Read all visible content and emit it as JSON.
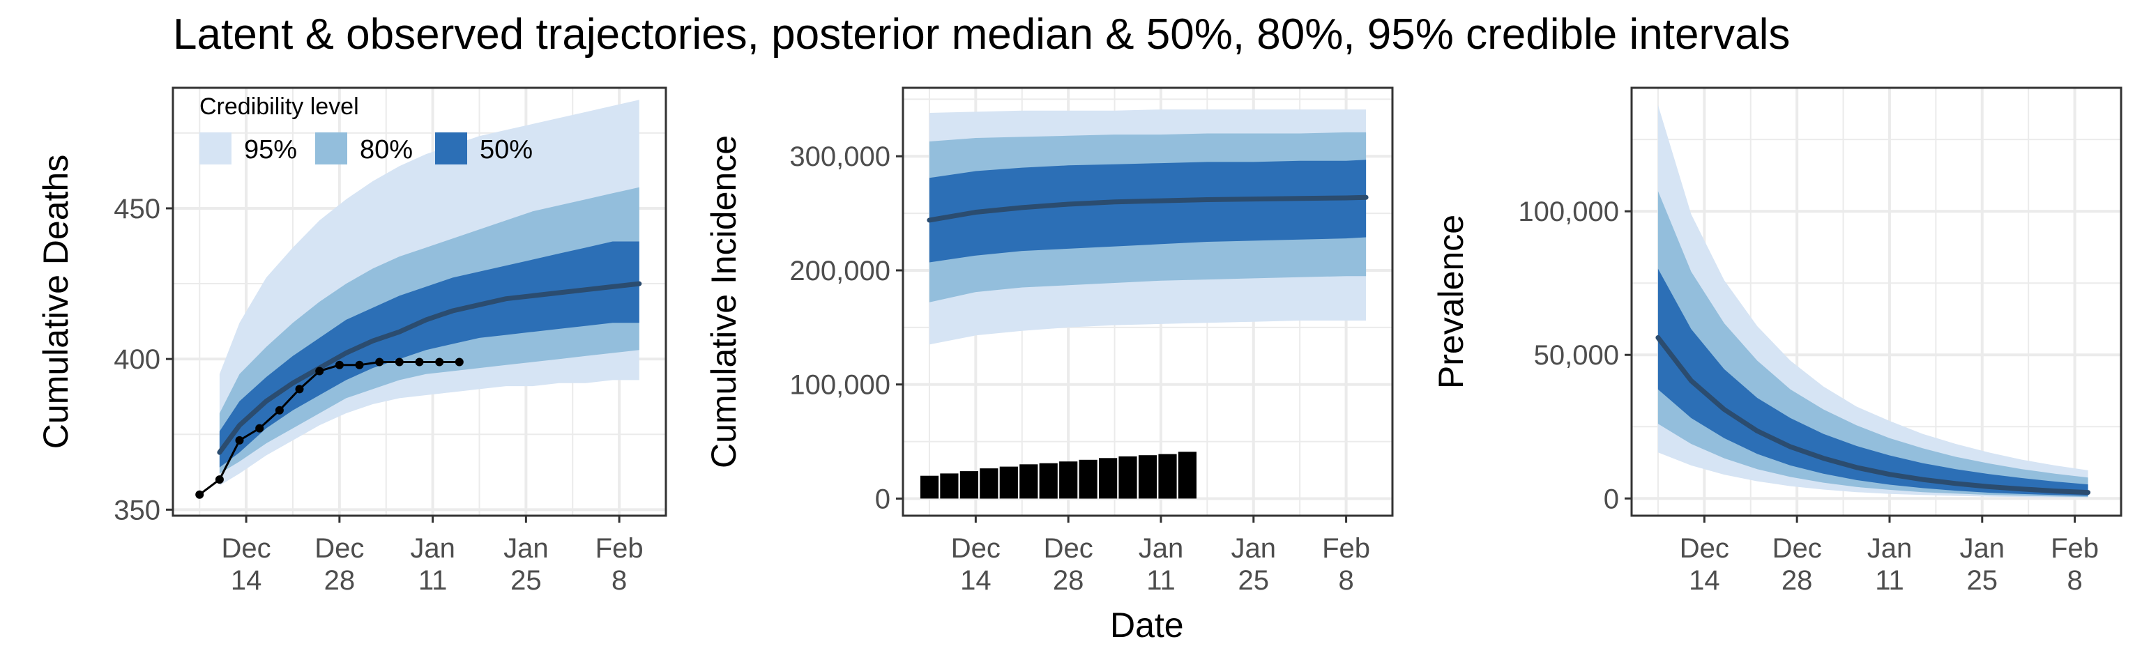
{
  "title": "Latent & observed trajectories, posterior median & 50%, 80%, 95% credible intervals",
  "xlabel": "Date",
  "legend": {
    "title": "Credibility level",
    "items": [
      {
        "label": "95%",
        "color": "#d6e4f4"
      },
      {
        "label": "80%",
        "color": "#93bedc"
      },
      {
        "label": "50%",
        "color": "#2c6fb6"
      }
    ]
  },
  "colors": {
    "median": "#2b4c6f",
    "observed": "#000000",
    "grid": "#ebebeb"
  },
  "chart_data": [
    {
      "type": "area",
      "ylabel": "Cumulative Deaths",
      "xlim": [
        "2020-12-03",
        "2021-02-15"
      ],
      "ylim": [
        348,
        490
      ],
      "x_ticks": [
        {
          "date": "2020-12-14",
          "label": [
            "Dec",
            "14"
          ]
        },
        {
          "date": "2020-12-28",
          "label": [
            "Dec",
            "28"
          ]
        },
        {
          "date": "2021-01-11",
          "label": [
            "Jan",
            "11"
          ]
        },
        {
          "date": "2021-01-25",
          "label": [
            "Jan",
            "25"
          ]
        },
        {
          "date": "2021-02-08",
          "label": [
            "Feb",
            "8"
          ]
        }
      ],
      "y_ticks": [
        {
          "value": 350,
          "label": "350"
        },
        {
          "value": 400,
          "label": "400"
        },
        {
          "value": 450,
          "label": "450"
        }
      ],
      "ribbon_x": [
        "2020-12-10",
        "2020-12-13",
        "2020-12-17",
        "2020-12-21",
        "2020-12-25",
        "2020-12-29",
        "2021-01-02",
        "2021-01-06",
        "2021-01-10",
        "2021-01-14",
        "2021-01-18",
        "2021-01-22",
        "2021-01-26",
        "2021-01-30",
        "2021-02-03",
        "2021-02-07",
        "2021-02-11"
      ],
      "ribbons": [
        {
          "level": "95%",
          "lower": [
            358,
            362,
            368,
            373,
            378,
            382,
            385,
            387,
            388,
            389,
            390,
            391,
            391,
            392,
            392,
            393,
            393
          ],
          "upper": [
            395,
            412,
            427,
            437,
            446,
            453,
            459,
            464,
            468,
            471,
            474,
            476,
            478,
            480,
            482,
            484,
            486
          ]
        },
        {
          "level": "80%",
          "lower": [
            362,
            366,
            372,
            377,
            382,
            387,
            390,
            393,
            395,
            396,
            397,
            398,
            399,
            400,
            401,
            402,
            403
          ],
          "upper": [
            382,
            395,
            404,
            412,
            419,
            425,
            430,
            434,
            437,
            440,
            443,
            446,
            449,
            451,
            453,
            455,
            457
          ]
        },
        {
          "level": "50%",
          "lower": [
            364,
            369,
            377,
            383,
            388,
            393,
            397,
            400,
            403,
            405,
            407,
            408,
            409,
            410,
            411,
            412,
            412
          ],
          "upper": [
            376,
            386,
            394,
            401,
            407,
            413,
            417,
            421,
            424,
            427,
            429,
            431,
            433,
            435,
            437,
            439,
            439
          ]
        }
      ],
      "median": [
        369,
        378,
        386,
        392,
        397,
        402,
        406,
        409,
        413,
        416,
        418,
        420,
        421,
        422,
        423,
        424,
        425
      ],
      "observed": {
        "x": [
          "2020-12-07",
          "2020-12-10",
          "2020-12-13",
          "2020-12-16",
          "2020-12-19",
          "2020-12-22",
          "2020-12-25",
          "2020-12-28",
          "2020-12-31",
          "2021-01-03",
          "2021-01-06",
          "2021-01-09",
          "2021-01-12",
          "2021-01-15"
        ],
        "y": [
          355,
          360,
          373,
          377,
          383,
          390,
          396,
          398,
          398,
          399,
          399,
          399,
          399,
          399
        ]
      }
    },
    {
      "type": "area",
      "ylabel": "Cumulative Incidence",
      "xlim": [
        "2020-12-03",
        "2021-02-15"
      ],
      "ylim": [
        -15000,
        360000
      ],
      "x_ticks": [
        {
          "date": "2020-12-14",
          "label": [
            "Dec",
            "14"
          ]
        },
        {
          "date": "2020-12-28",
          "label": [
            "Dec",
            "28"
          ]
        },
        {
          "date": "2021-01-11",
          "label": [
            "Jan",
            "11"
          ]
        },
        {
          "date": "2021-01-25",
          "label": [
            "Jan",
            "25"
          ]
        },
        {
          "date": "2021-02-08",
          "label": [
            "Feb",
            "8"
          ]
        }
      ],
      "y_ticks": [
        {
          "value": 0,
          "label": "0"
        },
        {
          "value": 100000,
          "label": "100,000"
        },
        {
          "value": 200000,
          "label": "200,000"
        },
        {
          "value": 300000,
          "label": "300,000"
        }
      ],
      "ribbon_x": [
        "2020-12-07",
        "2020-12-14",
        "2020-12-21",
        "2020-12-28",
        "2021-01-04",
        "2021-01-11",
        "2021-01-18",
        "2021-01-25",
        "2021-02-01",
        "2021-02-08",
        "2021-02-11"
      ],
      "ribbons": [
        {
          "level": "95%",
          "lower": [
            135000,
            143000,
            147000,
            150000,
            152000,
            153000,
            154000,
            155000,
            156000,
            156000,
            156000
          ],
          "upper": [
            338000,
            339000,
            340000,
            340000,
            340000,
            341000,
            341000,
            341000,
            341000,
            341000,
            341000
          ]
        },
        {
          "level": "80%",
          "lower": [
            172000,
            181000,
            185000,
            187000,
            189000,
            191000,
            192000,
            193000,
            194000,
            195000,
            195000
          ],
          "upper": [
            313000,
            316000,
            317000,
            318000,
            319000,
            319000,
            320000,
            320000,
            320000,
            321000,
            321000
          ]
        },
        {
          "level": "50%",
          "lower": [
            207000,
            213000,
            217000,
            219000,
            221000,
            223000,
            225000,
            226000,
            227000,
            228000,
            229000
          ],
          "upper": [
            281000,
            287000,
            290000,
            292000,
            293000,
            294000,
            295000,
            295000,
            296000,
            296000,
            297000
          ]
        }
      ],
      "median": [
        244000,
        251000,
        255000,
        258000,
        260000,
        261000,
        262000,
        262500,
        263000,
        263500,
        264000
      ],
      "bars": {
        "x": [
          "2020-12-07",
          "2020-12-10",
          "2020-12-13",
          "2020-12-16",
          "2020-12-19",
          "2020-12-22",
          "2020-12-25",
          "2020-12-28",
          "2020-12-31",
          "2021-01-03",
          "2021-01-06",
          "2021-01-09",
          "2021-01-12",
          "2021-01-15"
        ],
        "y": [
          20000,
          22000,
          24000,
          26500,
          28000,
          30000,
          31000,
          32500,
          34000,
          35500,
          37000,
          38000,
          39000,
          41000
        ]
      }
    },
    {
      "type": "area",
      "ylabel": "Prevalence",
      "xlim": [
        "2020-12-03",
        "2021-02-15"
      ],
      "ylim": [
        -6000,
        143000
      ],
      "x_ticks": [
        {
          "date": "2020-12-14",
          "label": [
            "Dec",
            "14"
          ]
        },
        {
          "date": "2020-12-28",
          "label": [
            "Dec",
            "28"
          ]
        },
        {
          "date": "2021-01-11",
          "label": [
            "Jan",
            "11"
          ]
        },
        {
          "date": "2021-01-25",
          "label": [
            "Jan",
            "25"
          ]
        },
        {
          "date": "2021-02-08",
          "label": [
            "Feb",
            "8"
          ]
        }
      ],
      "y_ticks": [
        {
          "value": 0,
          "label": "0"
        },
        {
          "value": 50000,
          "label": "50,000"
        },
        {
          "value": 100000,
          "label": "100,000"
        }
      ],
      "ribbon_x": [
        "2020-12-07",
        "2020-12-12",
        "2020-12-17",
        "2020-12-22",
        "2020-12-27",
        "2021-01-01",
        "2021-01-06",
        "2021-01-11",
        "2021-01-16",
        "2021-01-21",
        "2021-01-26",
        "2021-01-31",
        "2021-02-05",
        "2021-02-10"
      ],
      "ribbons": [
        {
          "level": "95%",
          "lower": [
            16000,
            11500,
            8300,
            6000,
            4300,
            3100,
            2200,
            1600,
            1200,
            900,
            650,
            480,
            350,
            250
          ],
          "upper": [
            137000,
            99000,
            76000,
            60000,
            48000,
            39000,
            32000,
            27000,
            22500,
            19000,
            16000,
            13500,
            11500,
            9800
          ]
        },
        {
          "level": "80%",
          "lower": [
            26000,
            19000,
            14000,
            10200,
            7500,
            5500,
            4000,
            3000,
            2200,
            1700,
            1250,
            950,
            700,
            520
          ],
          "upper": [
            107000,
            79000,
            61000,
            48000,
            38000,
            31000,
            25500,
            21000,
            17500,
            14500,
            12200,
            10200,
            8600,
            7300
          ]
        },
        {
          "level": "50%",
          "lower": [
            38000,
            28000,
            21000,
            15500,
            11500,
            8600,
            6400,
            4800,
            3600,
            2700,
            2000,
            1550,
            1200,
            900
          ],
          "upper": [
            80000,
            59000,
            45000,
            35000,
            28000,
            22500,
            18300,
            15000,
            12300,
            10200,
            8500,
            7100,
            5900,
            4900
          ]
        }
      ],
      "median": [
        56000,
        41000,
        31000,
        23500,
        18000,
        14000,
        10800,
        8400,
        6600,
        5200,
        4100,
        3300,
        2600,
        2100
      ]
    }
  ]
}
